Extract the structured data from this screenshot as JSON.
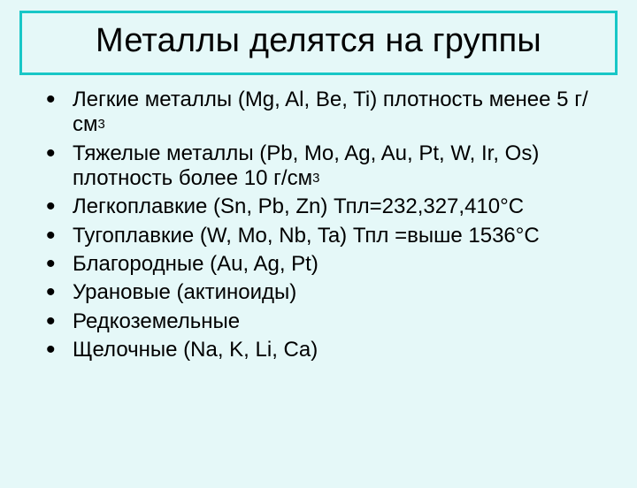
{
  "slide": {
    "title": "Металлы делятся на группы",
    "background_color": "#e5f8f8",
    "title_border_color": "#18c7c7",
    "title_fontsize": 38,
    "body_fontsize": 24,
    "text_color": "#000000",
    "bullets": [
      {
        "html": "Легкие металлы (Mg, Al, Be, Ti) плотность менее 5 г/см<span class=\"sup\">3</span>"
      },
      {
        "html": "Тяжелые металлы (Pb, Mo, Ag, Au, Pt, W, Ir, Os) плотность более 10 г/см<span class=\"sup\">3</span>"
      },
      {
        "html": "Легкоплавкие (Sn, Pb, Zn) Тпл=232,327,410°С"
      },
      {
        "html": "Тугоплавкие (W, Mo, Nb, Ta) Тпл =выше 1536°С"
      },
      {
        "html": "Благородные (Au, Ag, Pt)"
      },
      {
        "html": "Урановые (актиноиды)"
      },
      {
        "html": "Редкоземельные"
      },
      {
        "html": "Щелочные (Na, K, Li, Ca)"
      }
    ]
  }
}
